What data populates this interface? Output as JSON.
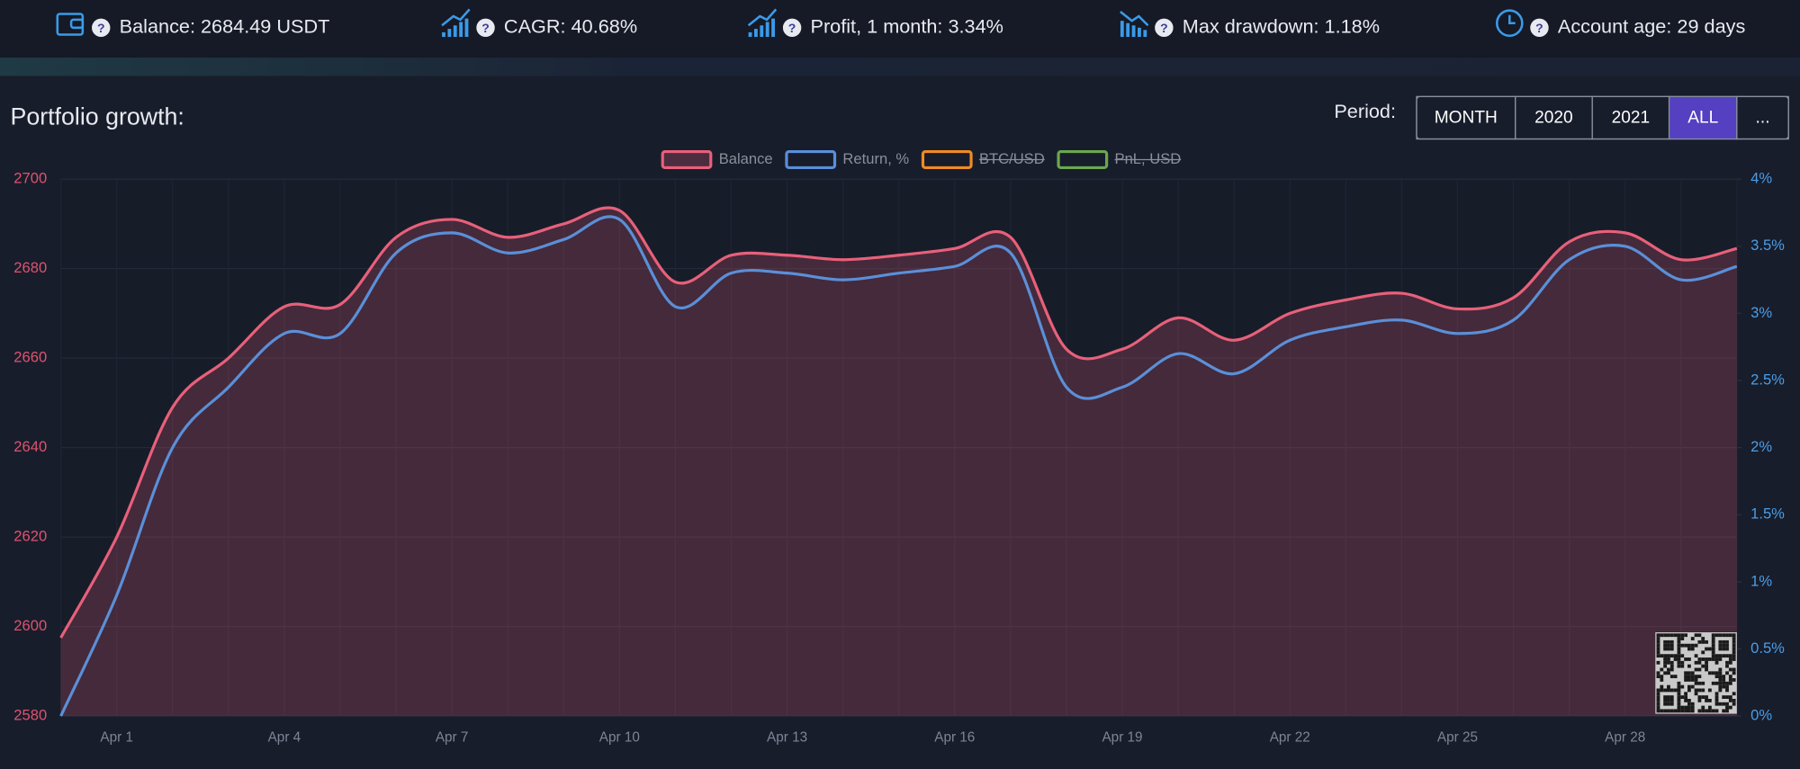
{
  "stats": [
    "Balance: 2684.49 USDT",
    "CAGR: 40.68%",
    "Profit, 1 month: 3.34%",
    "Max drawdown: 1.18%",
    "Account age: 29 days"
  ],
  "panel": {
    "title": "Portfolio growth:",
    "period_label": "Period:",
    "period_options": [
      "MONTH",
      "2020",
      "2021",
      "ALL",
      "..."
    ],
    "active_period": 3
  },
  "chart_data": {
    "type": "line",
    "categories": [
      null,
      "Apr 1",
      null,
      null,
      "Apr 4",
      null,
      null,
      "Apr 7",
      null,
      null,
      "Apr 10",
      null,
      null,
      "Apr 13",
      null,
      null,
      "Apr 16",
      null,
      null,
      "Apr 19",
      null,
      null,
      "Apr 22",
      null,
      null,
      "Apr 25",
      null,
      null,
      "Apr 28",
      null,
      null
    ],
    "series": [
      {
        "name": "Balance",
        "color": "#e8607a",
        "fill": true,
        "values": [
          2597.5,
          2620,
          2649,
          2660,
          2671.5,
          2672,
          2687,
          2691,
          2687,
          2690,
          2693,
          2677,
          2683,
          2683,
          2682,
          2683,
          2684.5,
          2687,
          2662,
          2662,
          2669,
          2664,
          2670,
          2673,
          2674.5,
          2671,
          2673.5,
          2686,
          2688,
          2682,
          2684.5
        ]
      },
      {
        "name": "Return, %",
        "color": "#5b8fd8",
        "axis": "y2",
        "values": [
          0,
          0.9,
          2.0,
          2.45,
          2.85,
          2.85,
          3.45,
          3.6,
          3.45,
          3.55,
          3.7,
          3.05,
          3.3,
          3.3,
          3.25,
          3.3,
          3.35,
          3.45,
          2.45,
          2.45,
          2.7,
          2.55,
          2.8,
          2.9,
          2.95,
          2.85,
          2.95,
          3.4,
          3.5,
          3.25,
          3.35
        ]
      }
    ],
    "hidden_series": [
      {
        "name": "BTC/USD",
        "color": "#f08a24"
      },
      {
        "name": "PnL, USD",
        "color": "#6aa84f"
      }
    ],
    "ylim": [
      2580,
      2700
    ],
    "yticks": [
      2580,
      2600,
      2620,
      2640,
      2660,
      2680,
      2700
    ],
    "ytick_color": "#e0526f",
    "y2lim": [
      0,
      4
    ],
    "y2ticks": [
      {
        "value": 0,
        "label": "0%"
      },
      {
        "value": 0.5,
        "label": "0.5%"
      },
      {
        "value": 1,
        "label": "1%"
      },
      {
        "value": 1.5,
        "label": "1.5%"
      },
      {
        "value": 2,
        "label": "2%"
      },
      {
        "value": 2.5,
        "label": "2.5%"
      },
      {
        "value": 3,
        "label": "3%"
      },
      {
        "value": 3.5,
        "label": "3.5%"
      },
      {
        "value": 4,
        "label": "4%"
      }
    ],
    "y2tick_color": "#4a9ee8",
    "grid": true,
    "legend": "top"
  }
}
